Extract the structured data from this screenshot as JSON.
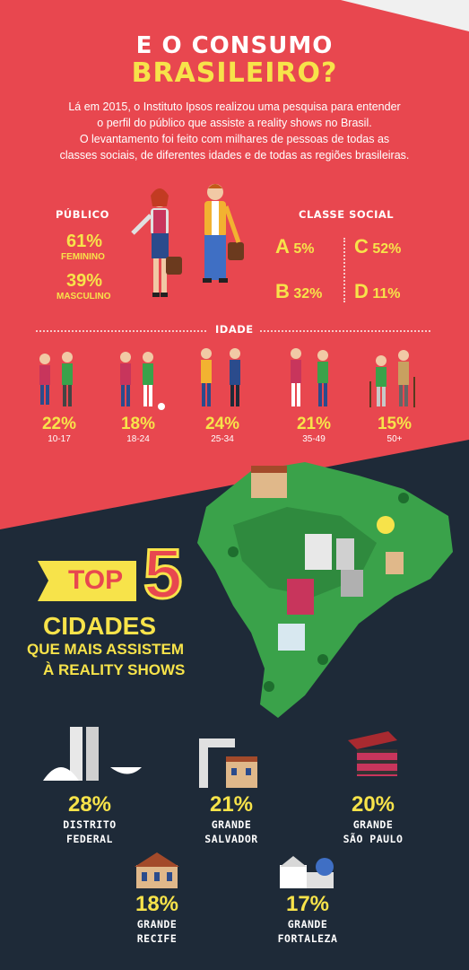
{
  "header": {
    "title_line1": "E O CONSUMO",
    "title_line2": "BRASILEIRO?",
    "intro_lines": [
      "Lá em 2015, o Instituto Ipsos realizou uma pesquisa para entender",
      "o perfil do público que assiste a reality shows no Brasil.",
      "O levantamento foi feito com milhares de pessoas de todas as",
      "classes sociais, de diferentes idades e de todas as regiões brasileiras."
    ]
  },
  "publico": {
    "label": "PÚBLICO",
    "feminino": {
      "pct": "61%",
      "label": "FEMININO"
    },
    "masculino": {
      "pct": "39%",
      "label": "MASCULINO"
    }
  },
  "classe_social": {
    "label": "CLASSE SOCIAL",
    "items": [
      {
        "letter": "A",
        "pct": "5%"
      },
      {
        "letter": "C",
        "pct": "52%"
      },
      {
        "letter": "B",
        "pct": "32%"
      },
      {
        "letter": "D",
        "pct": "11%"
      }
    ]
  },
  "idade": {
    "label": "IDADE",
    "groups": [
      {
        "pct": "22%",
        "range": "10-17"
      },
      {
        "pct": "18%",
        "range": "18-24"
      },
      {
        "pct": "24%",
        "range": "25-34"
      },
      {
        "pct": "21%",
        "range": "35-49"
      },
      {
        "pct": "15%",
        "range": "50+"
      }
    ]
  },
  "top5": {
    "top_label": "TOP",
    "number": "5",
    "line1": "CIDADES",
    "line2": "QUE MAIS ASSISTEM",
    "line3": "À REALITY SHOWS"
  },
  "cities": [
    {
      "pct": "28%",
      "name1": "DISTRITO",
      "name2": "FEDERAL",
      "icon": "congress-icon"
    },
    {
      "pct": "21%",
      "name1": "GRANDE",
      "name2": "SALVADOR",
      "icon": "elevator-lacerda-icon"
    },
    {
      "pct": "20%",
      "name1": "GRANDE",
      "name2": "SÃO PAULO",
      "icon": "masp-icon"
    },
    {
      "pct": "18%",
      "name1": "GRANDE",
      "name2": "RECIFE",
      "icon": "theater-icon"
    },
    {
      "pct": "17%",
      "name1": "GRANDE",
      "name2": "FORTALEZA",
      "icon": "dragao-do-mar-icon"
    }
  ],
  "colors": {
    "red": "#e8474f",
    "navy": "#1e2a38",
    "yellow": "#f7e34a",
    "green": "#3aa24a"
  }
}
